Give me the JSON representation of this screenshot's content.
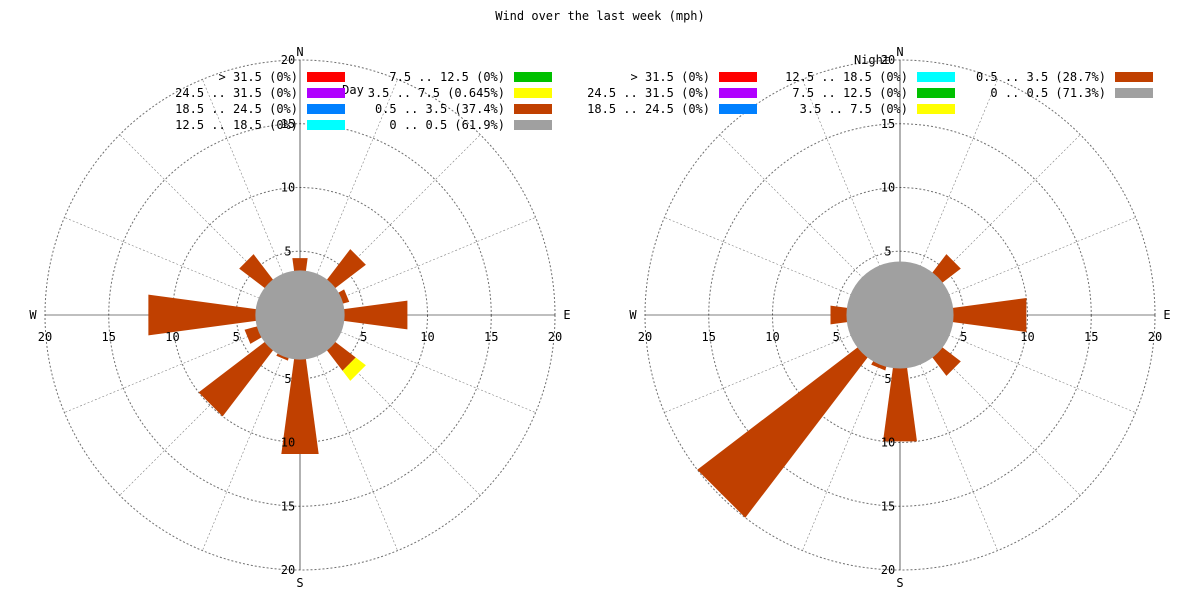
{
  "title": "Wind over the last week (mph)",
  "speed_colors": {
    "gt_31_5": "#ff0000",
    "24_5_31_5": "#b000ff",
    "18_5_24_5": "#0080ff",
    "12_5_18_5": "#00ffff",
    "7_5_12_5": "#00c000",
    "3_5_7_5": "#ffff00",
    "0_5_3_5": "#c04000",
    "0_0_5": "#a0a0a0"
  },
  "chart_data": [
    {
      "type": "wind_rose",
      "title": "Day",
      "rlim": [
        0,
        20
      ],
      "r_ticks": [
        5,
        10,
        15,
        20
      ],
      "calm_radius": 3.5,
      "directions": [
        "N",
        "NNE",
        "NE",
        "ENE",
        "E",
        "ESE",
        "SE",
        "SSE",
        "S",
        "SSW",
        "SW",
        "WSW",
        "W",
        "WNW",
        "NW",
        "NNW"
      ],
      "compass_labels": [
        "N",
        "E",
        "S",
        "W"
      ],
      "legend": [
        {
          "label": "> 31.5 (0%)",
          "color_key": "gt_31_5"
        },
        {
          "label": "24.5 .. 31.5 (0%)",
          "color_key": "24_5_31_5"
        },
        {
          "label": "18.5 .. 24.5 (0%)",
          "color_key": "18_5_24_5"
        },
        {
          "label": "12.5 .. 18.5 (0%)",
          "color_key": "12_5_18_5"
        },
        {
          "label": "7.5 .. 12.5 (0%)",
          "color_key": "7_5_12_5"
        },
        {
          "label": "3.5 .. 7.5 (0.645%)",
          "color_key": "3_5_7_5"
        },
        {
          "label": "0.5 .. 3.5 (37.4%)",
          "color_key": "0_5_3_5"
        },
        {
          "label": "0 .. 0.5 (61.9%)",
          "color_key": "0_0_5"
        }
      ],
      "series": [
        {
          "speed_range": "0.5 .. 3.5",
          "color_key": "0_5_3_5",
          "values": [
            4.5,
            0,
            6.5,
            4.0,
            8.5,
            0,
            5.5,
            0,
            11.0,
            3.7,
            10.0,
            4.5,
            12.0,
            0,
            6.0,
            0
          ]
        },
        {
          "speed_range": "3.5 .. 7.5",
          "color_key": "3_5_7_5",
          "values": [
            0,
            0,
            0,
            0,
            0,
            0,
            1.0,
            0,
            0,
            0,
            0,
            0,
            0,
            0,
            0,
            0
          ]
        }
      ]
    },
    {
      "type": "wind_rose",
      "title": "Night",
      "rlim": [
        0,
        20
      ],
      "r_ticks": [
        5,
        10,
        15,
        20
      ],
      "calm_radius": 4.2,
      "directions": [
        "N",
        "NNE",
        "NE",
        "ENE",
        "E",
        "ESE",
        "SE",
        "SSE",
        "S",
        "SSW",
        "SW",
        "WSW",
        "W",
        "WNW",
        "NW",
        "NNW"
      ],
      "compass_labels": [
        "N",
        "E",
        "S",
        "W"
      ],
      "legend": [
        {
          "label": "> 31.5 (0%)",
          "color_key": "gt_31_5"
        },
        {
          "label": "24.5 .. 31.5 (0%)",
          "color_key": "24_5_31_5"
        },
        {
          "label": "18.5 .. 24.5 (0%)",
          "color_key": "18_5_24_5"
        },
        {
          "label": "12.5 .. 18.5 (0%)",
          "color_key": "12_5_18_5"
        },
        {
          "label": "7.5 .. 12.5 (0%)",
          "color_key": "7_5_12_5"
        },
        {
          "label": "3.5 .. 7.5 (0%)",
          "color_key": "3_5_7_5"
        },
        {
          "label": "0.5 .. 3.5 (28.7%)",
          "color_key": "0_5_3_5"
        },
        {
          "label": "0 .. 0.5 (71.3%)",
          "color_key": "0_0_5"
        }
      ],
      "series": [
        {
          "speed_range": "0.5 .. 3.5",
          "color_key": "0_5_3_5",
          "values": [
            0,
            0,
            6.0,
            0,
            10.0,
            0,
            6.0,
            0,
            10.0,
            4.5,
            20.0,
            0,
            5.5,
            0,
            0,
            0
          ]
        }
      ]
    }
  ]
}
